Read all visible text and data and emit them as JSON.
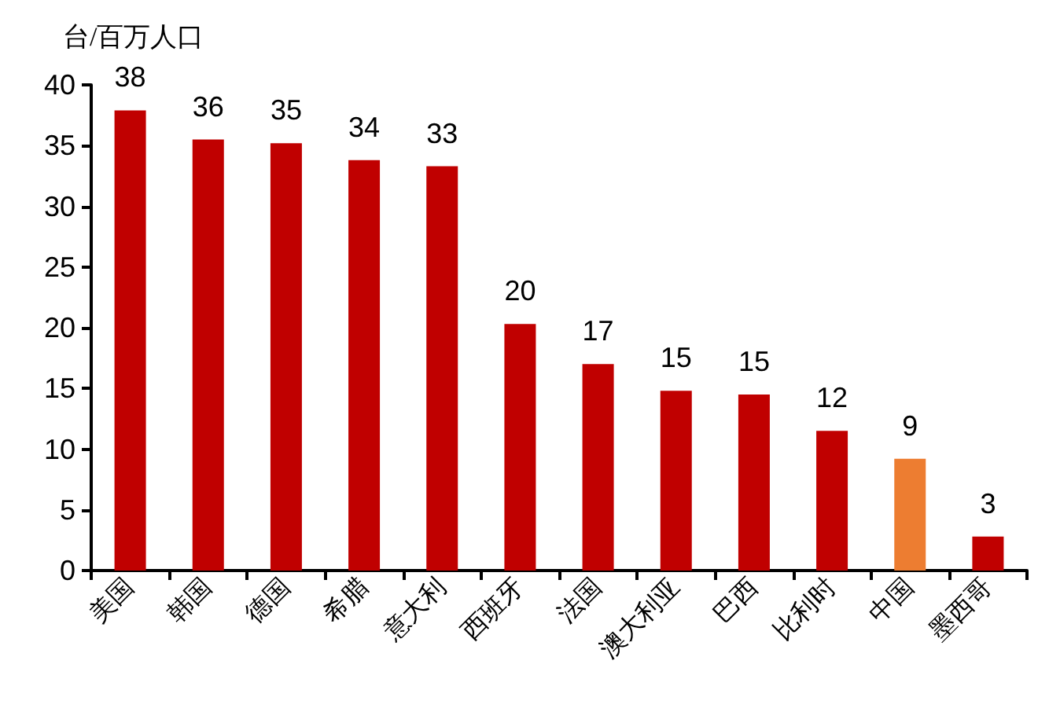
{
  "chart_data": {
    "type": "bar",
    "ylabel": "台/百万人口",
    "categories": [
      "美国",
      "韩国",
      "德国",
      "希腊",
      "意大利",
      "西班牙",
      "法国",
      "澳大利亚",
      "巴西",
      "比利时",
      "中国",
      "墨西哥"
    ],
    "values": [
      37.9,
      35.5,
      35.2,
      33.8,
      33.3,
      20.3,
      17.0,
      14.8,
      14.5,
      11.5,
      9.2,
      2.8
    ],
    "value_labels": [
      "38",
      "36",
      "35",
      "34",
      "33",
      "20",
      "17",
      "15",
      "15",
      "12",
      "9",
      "3"
    ],
    "colors": [
      "#c00000",
      "#c00000",
      "#c00000",
      "#c00000",
      "#c00000",
      "#c00000",
      "#c00000",
      "#c00000",
      "#c00000",
      "#c00000",
      "#ed7d31",
      "#c00000"
    ],
    "ylim": [
      0,
      40
    ],
    "yticks": [
      0,
      5,
      10,
      15,
      20,
      25,
      30,
      35,
      40
    ],
    "grid": false
  }
}
